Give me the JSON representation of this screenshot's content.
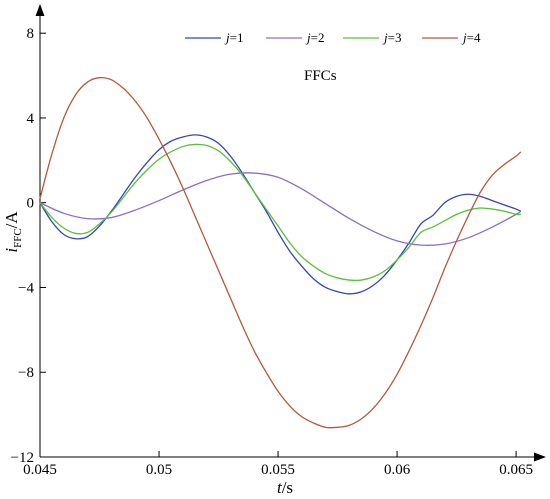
{
  "chart_data": {
    "type": "line",
    "title": "",
    "annotation": "FFCs",
    "xlabel": {
      "main": "t",
      "unit": "/s"
    },
    "ylabel": {
      "main": "i",
      "sub": "FFC",
      "unit": "/A"
    },
    "xlim": [
      0.045,
      0.0655
    ],
    "ylim": [
      -12,
      9
    ],
    "xticks": [
      0.045,
      0.05,
      0.055,
      0.06,
      0.065
    ],
    "xtick_labels": [
      "0.045",
      "0.05",
      "0.055",
      "0.06",
      "0.065"
    ],
    "yticks": [
      -12,
      -8,
      -4,
      0,
      4,
      8
    ],
    "ytick_labels": [
      "−12",
      "−8",
      "−4",
      "0",
      "4",
      "8"
    ],
    "grid": false,
    "legend_position": "top",
    "series": [
      {
        "name": "j=1",
        "label_var": "j",
        "label_val": "=1",
        "color": "#3346b8",
        "x": [
          0.045,
          0.0455,
          0.046,
          0.0465,
          0.047,
          0.0475,
          0.048,
          0.0485,
          0.049,
          0.0495,
          0.05,
          0.0505,
          0.051,
          0.0515,
          0.052,
          0.0525,
          0.053,
          0.0535,
          0.054,
          0.0545,
          0.055,
          0.0555,
          0.056,
          0.0565,
          0.057,
          0.0575,
          0.058,
          0.0585,
          0.059,
          0.0595,
          0.06,
          0.0605,
          0.061,
          0.0615,
          0.062,
          0.0625,
          0.063,
          0.0635,
          0.064,
          0.0645,
          0.065,
          0.0652
        ],
        "y": [
          0,
          -0.9,
          -1.5,
          -1.7,
          -1.6,
          -1.1,
          -0.4,
          0.4,
          1.2,
          1.9,
          2.5,
          2.9,
          3.1,
          3.2,
          3.1,
          2.8,
          2.2,
          1.4,
          0.5,
          -0.4,
          -1.4,
          -2.3,
          -3.0,
          -3.6,
          -4.0,
          -4.2,
          -4.3,
          -4.2,
          -3.9,
          -3.4,
          -2.7,
          -1.9,
          -1.0,
          -0.6,
          0,
          0.3,
          0.4,
          0.3,
          0.1,
          -0.1,
          -0.3,
          -0.4
        ]
      },
      {
        "name": "j=2",
        "label_var": "j",
        "label_val": "=2",
        "color": "#8a6fc9",
        "x": [
          0.045,
          0.046,
          0.047,
          0.048,
          0.049,
          0.05,
          0.051,
          0.052,
          0.053,
          0.054,
          0.055,
          0.056,
          0.057,
          0.058,
          0.059,
          0.06,
          0.061,
          0.062,
          0.063,
          0.064,
          0.065,
          0.0652
        ],
        "y": [
          0,
          -0.5,
          -0.75,
          -0.7,
          -0.35,
          0.1,
          0.6,
          1.05,
          1.35,
          1.4,
          1.2,
          0.65,
          -0.05,
          -0.75,
          -1.35,
          -1.8,
          -2.0,
          -1.95,
          -1.65,
          -1.15,
          -0.55,
          -0.4
        ]
      },
      {
        "name": "j=3",
        "label_var": "j",
        "label_val": "=3",
        "color": "#5cbf3c",
        "x": [
          0.045,
          0.0455,
          0.046,
          0.0465,
          0.047,
          0.0475,
          0.048,
          0.0485,
          0.049,
          0.0495,
          0.05,
          0.0505,
          0.051,
          0.0515,
          0.052,
          0.0525,
          0.053,
          0.0535,
          0.054,
          0.0545,
          0.055,
          0.0555,
          0.056,
          0.0565,
          0.057,
          0.0575,
          0.058,
          0.0585,
          0.059,
          0.0595,
          0.06,
          0.0605,
          0.061,
          0.0615,
          0.062,
          0.0625,
          0.063,
          0.0635,
          0.064,
          0.0645,
          0.065,
          0.0652
        ],
        "y": [
          0,
          -0.7,
          -1.2,
          -1.45,
          -1.4,
          -1.0,
          -0.45,
          0.25,
          0.95,
          1.55,
          2.05,
          2.4,
          2.65,
          2.75,
          2.7,
          2.45,
          1.95,
          1.3,
          0.5,
          -0.3,
          -1.1,
          -1.9,
          -2.55,
          -3.0,
          -3.35,
          -3.55,
          -3.65,
          -3.65,
          -3.5,
          -3.2,
          -2.7,
          -2.1,
          -1.4,
          -1.15,
          -0.85,
          -0.55,
          -0.35,
          -0.25,
          -0.3,
          -0.4,
          -0.55,
          -0.55
        ]
      },
      {
        "name": "j=4",
        "label_var": "j",
        "label_val": "=4",
        "color": "#b35a3a",
        "x": [
          0.045,
          0.0455,
          0.046,
          0.0465,
          0.047,
          0.0475,
          0.048,
          0.0485,
          0.049,
          0.0495,
          0.05,
          0.0505,
          0.051,
          0.0515,
          0.052,
          0.0525,
          0.053,
          0.0535,
          0.054,
          0.0545,
          0.055,
          0.0555,
          0.056,
          0.0565,
          0.057,
          0.0575,
          0.058,
          0.0585,
          0.059,
          0.0595,
          0.06,
          0.0605,
          0.061,
          0.0615,
          0.062,
          0.0625,
          0.063,
          0.0635,
          0.064,
          0.0645,
          0.065,
          0.0652
        ],
        "y": [
          0.2,
          2.3,
          4.0,
          5.1,
          5.7,
          5.9,
          5.8,
          5.4,
          4.8,
          4.0,
          3.0,
          1.9,
          0.7,
          -0.6,
          -1.9,
          -3.2,
          -4.5,
          -5.8,
          -7.0,
          -8.0,
          -8.9,
          -9.6,
          -10.1,
          -10.4,
          -10.6,
          -10.6,
          -10.5,
          -10.2,
          -9.7,
          -9.0,
          -8.1,
          -7.0,
          -5.8,
          -4.5,
          -3.1,
          -1.8,
          -0.6,
          0.5,
          1.3,
          1.8,
          2.2,
          2.4
        ]
      }
    ]
  }
}
